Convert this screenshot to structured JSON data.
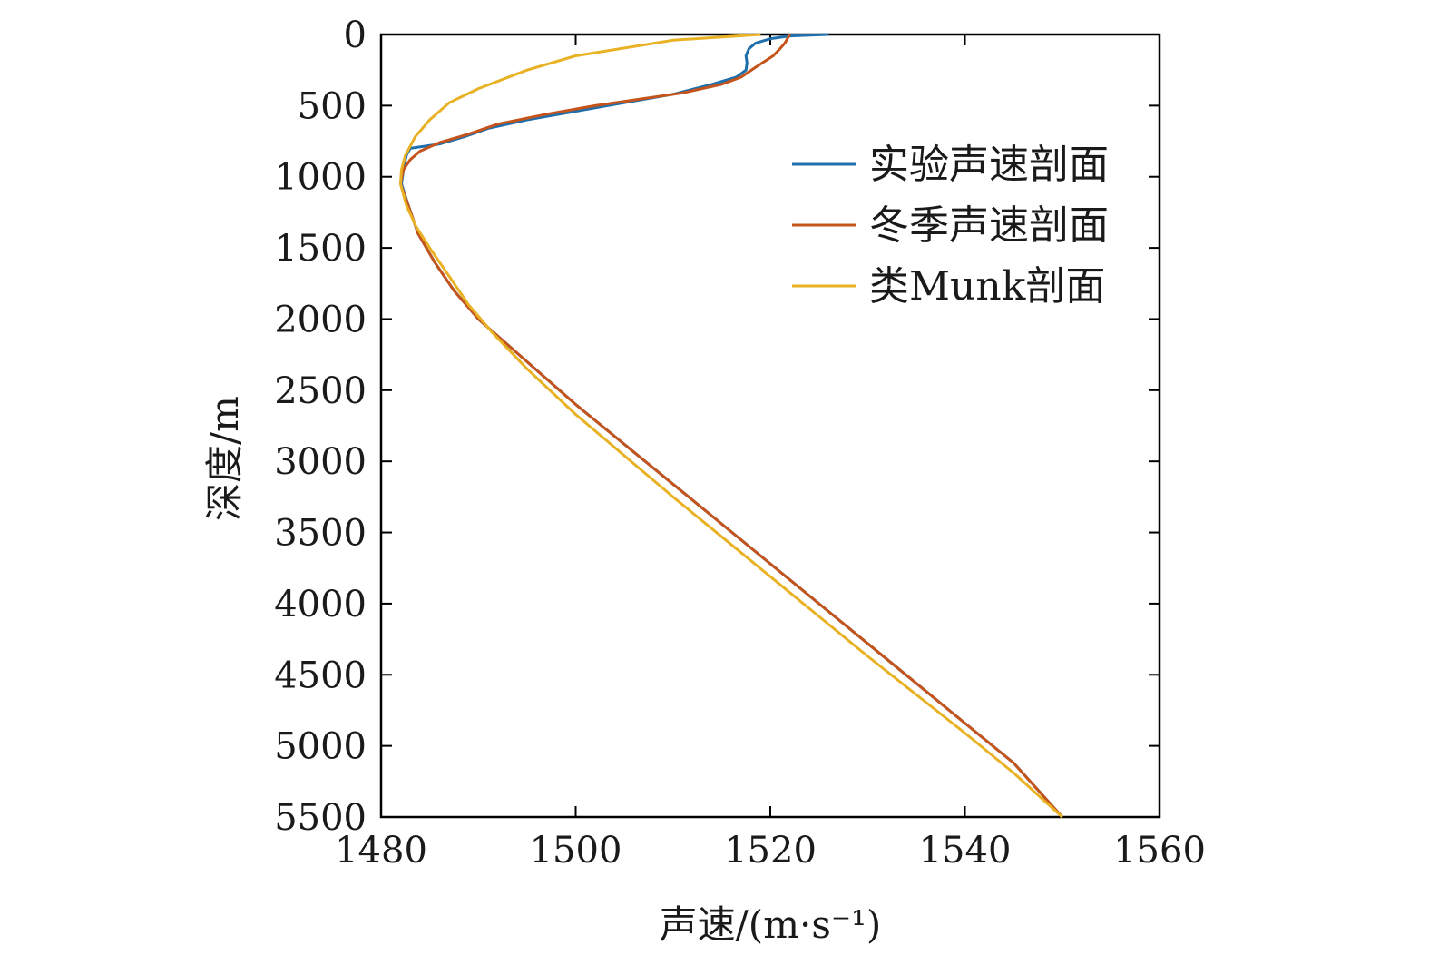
{
  "chart_data": {
    "type": "line",
    "title": "",
    "xlabel": "声速/(m·s⁻¹)",
    "ylabel": "深度/m",
    "xlim": [
      1480,
      1560
    ],
    "ylim": [
      0,
      5500
    ],
    "y_inverted": true,
    "grid": false,
    "x_ticks": [
      1480,
      1500,
      1520,
      1540,
      1560
    ],
    "y_ticks": [
      0,
      500,
      1000,
      1500,
      2000,
      2500,
      3000,
      3500,
      4000,
      4500,
      5000,
      5500
    ],
    "legend_position": "top-right",
    "series": [
      {
        "name": "实验声速剖面",
        "color": "#1f6fad",
        "points": [
          [
            1526,
            0
          ],
          [
            1522,
            10
          ],
          [
            1520,
            30
          ],
          [
            1518.5,
            60
          ],
          [
            1517.8,
            100
          ],
          [
            1517.5,
            150
          ],
          [
            1517.6,
            200
          ],
          [
            1517.5,
            250
          ],
          [
            1516.5,
            300
          ],
          [
            1514,
            350
          ],
          [
            1510,
            420
          ],
          [
            1505,
            480
          ],
          [
            1500,
            540
          ],
          [
            1495,
            600
          ],
          [
            1491,
            660
          ],
          [
            1488.5,
            720
          ],
          [
            1486,
            770
          ],
          [
            1483,
            800
          ],
          [
            1482.6,
            850
          ],
          [
            1482.3,
            950
          ],
          [
            1482.1,
            1050
          ],
          [
            1482.8,
            1200
          ],
          [
            1483.8,
            1400
          ],
          [
            1485.5,
            1600
          ],
          [
            1487.5,
            1800
          ],
          [
            1490,
            2000
          ],
          [
            1495,
            2300
          ],
          [
            1500,
            2600
          ],
          [
            1505,
            2880
          ],
          [
            1510,
            3160
          ],
          [
            1515,
            3440
          ],
          [
            1520,
            3720
          ],
          [
            1525,
            4000
          ],
          [
            1530,
            4280
          ],
          [
            1535,
            4560
          ],
          [
            1540,
            4840
          ],
          [
            1545,
            5120
          ],
          [
            1550,
            5500
          ]
        ]
      },
      {
        "name": "冬季声速剖面",
        "color": "#c4541b",
        "points": [
          [
            1522,
            0
          ],
          [
            1521.5,
            60
          ],
          [
            1521,
            100
          ],
          [
            1520.3,
            150
          ],
          [
            1518.5,
            230
          ],
          [
            1517,
            300
          ],
          [
            1515,
            350
          ],
          [
            1511,
            410
          ],
          [
            1506,
            460
          ],
          [
            1502,
            500
          ],
          [
            1497,
            560
          ],
          [
            1492,
            630
          ],
          [
            1489,
            700
          ],
          [
            1486,
            760
          ],
          [
            1484,
            820
          ],
          [
            1483,
            880
          ],
          [
            1482.3,
            950
          ],
          [
            1482,
            1050
          ],
          [
            1482.8,
            1200
          ],
          [
            1483.8,
            1400
          ],
          [
            1485.5,
            1600
          ],
          [
            1487.5,
            1800
          ],
          [
            1490,
            2000
          ],
          [
            1495,
            2300
          ],
          [
            1500,
            2600
          ],
          [
            1505,
            2880
          ],
          [
            1510,
            3160
          ],
          [
            1515,
            3440
          ],
          [
            1520,
            3720
          ],
          [
            1525,
            4000
          ],
          [
            1530,
            4280
          ],
          [
            1535,
            4560
          ],
          [
            1540,
            4840
          ],
          [
            1545,
            5120
          ],
          [
            1550,
            5500
          ]
        ]
      },
      {
        "name": "类Munk剖面",
        "color": "#e8b224",
        "points": [
          [
            1519,
            0
          ],
          [
            1510,
            40
          ],
          [
            1500,
            150
          ],
          [
            1495,
            250
          ],
          [
            1490,
            380
          ],
          [
            1487,
            480
          ],
          [
            1485,
            600
          ],
          [
            1483.5,
            720
          ],
          [
            1482.5,
            850
          ],
          [
            1482.1,
            950
          ],
          [
            1482,
            1050
          ],
          [
            1482.6,
            1200
          ],
          [
            1483.6,
            1350
          ],
          [
            1485,
            1500
          ],
          [
            1487,
            1700
          ],
          [
            1489,
            1900
          ],
          [
            1491.5,
            2100
          ],
          [
            1495,
            2350
          ],
          [
            1500,
            2670
          ],
          [
            1505,
            2960
          ],
          [
            1510,
            3250
          ],
          [
            1515,
            3530
          ],
          [
            1520,
            3810
          ],
          [
            1525,
            4090
          ],
          [
            1530,
            4370
          ],
          [
            1535,
            4640
          ],
          [
            1540,
            4910
          ],
          [
            1545,
            5190
          ],
          [
            1550,
            5500
          ]
        ]
      }
    ]
  }
}
